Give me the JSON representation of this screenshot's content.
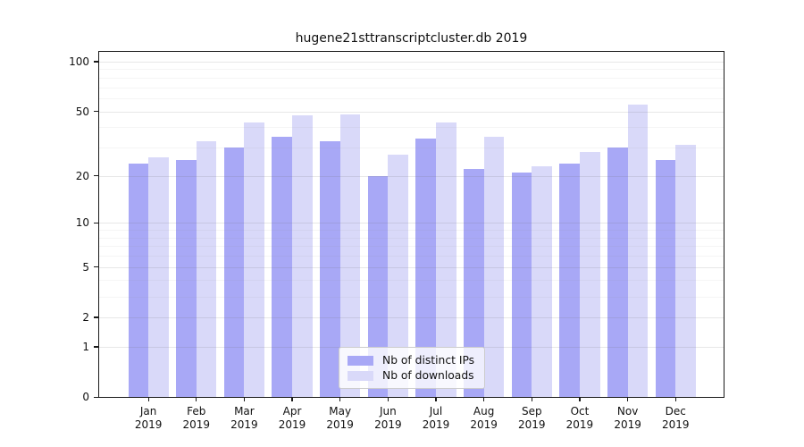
{
  "chart_data": {
    "type": "bar",
    "title": "hugene21sttranscriptcluster.db 2019",
    "categories": [
      "Jan",
      "Feb",
      "Mar",
      "Apr",
      "May",
      "Jun",
      "Jul",
      "Aug",
      "Sep",
      "Oct",
      "Nov",
      "Dec"
    ],
    "x_tick_second_line": "2019",
    "series": [
      {
        "name": "Nb of distinct IPs",
        "color": "#a8a8f6",
        "values": [
          24,
          25,
          30,
          35,
          33,
          20,
          34,
          22,
          21,
          24,
          30,
          25
        ]
      },
      {
        "name": "Nb of downloads",
        "color": "#d9d9f9",
        "values": [
          26,
          33,
          43,
          47,
          48,
          27,
          43,
          35,
          23,
          28,
          55,
          31
        ]
      }
    ],
    "yscale": "log1p",
    "ylim": [
      0,
      116
    ],
    "yticks": [
      0,
      1,
      2,
      5,
      10,
      20,
      50,
      100
    ],
    "minor_yticks": [
      3,
      4,
      6,
      7,
      8,
      9,
      30,
      40,
      60,
      70,
      80,
      90
    ],
    "grid": true,
    "legend_position": "lower center",
    "xlabel": "",
    "ylabel": ""
  }
}
